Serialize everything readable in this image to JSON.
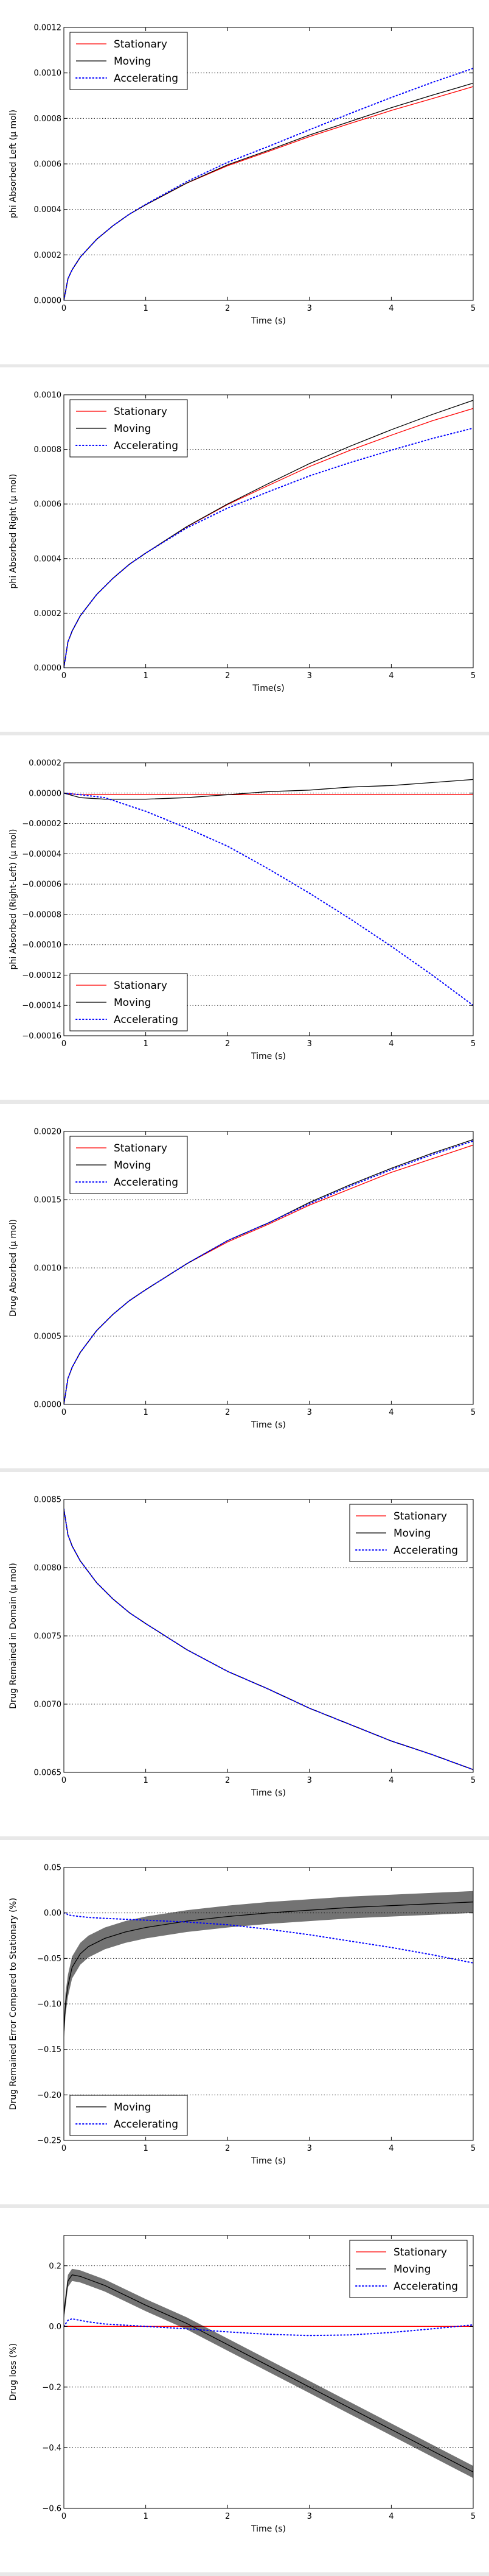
{
  "chart_data": [
    {
      "type": "line",
      "xlabel": "Time (s)",
      "ylabel": "phi Absorbed Left (μ mol)",
      "xlim": [
        0,
        5
      ],
      "ylim": [
        0,
        0.0012
      ],
      "xticks": [
        0,
        1,
        2,
        3,
        4,
        5
      ],
      "xtick_labels": [
        "0",
        "1",
        "2",
        "3",
        "4",
        "5"
      ],
      "yticks": [
        0,
        0.0002,
        0.0004,
        0.0006,
        0.0008,
        0.001,
        0.0012
      ],
      "ytick_labels": [
        "0.0000",
        "0.0002",
        "0.0004",
        "0.0006",
        "0.0008",
        "0.0010",
        "0.0012"
      ],
      "grid": "horizontal-dotted",
      "legend": "top-left",
      "x": [
        0,
        0.05,
        0.1,
        0.2,
        0.4,
        0.6,
        0.8,
        1.0,
        1.5,
        2.0,
        2.5,
        3.0,
        3.5,
        4.0,
        4.5,
        5.0
      ],
      "series": [
        {
          "name": "Stationary",
          "color": "#ff0000",
          "dash": "solid",
          "values": [
            0,
            9.5e-05,
            0.000134,
            0.00019,
            0.000268,
            0.000328,
            0.000379,
            0.00042,
            0.000515,
            0.000592,
            0.000655,
            0.00072,
            0.000778,
            0.000835,
            0.000887,
            0.00094
          ]
        },
        {
          "name": "Moving",
          "color": "#000000",
          "dash": "solid",
          "values": [
            0,
            9.5e-05,
            0.000134,
            0.00019,
            0.000268,
            0.000328,
            0.000379,
            0.00042,
            0.000516,
            0.000596,
            0.00066,
            0.000727,
            0.000787,
            0.000847,
            0.000902,
            0.000955
          ]
        },
        {
          "name": "Accelerating",
          "color": "#0000ff",
          "dash": "dotted",
          "values": [
            0,
            9.5e-05,
            0.000134,
            0.00019,
            0.000268,
            0.000328,
            0.000379,
            0.000422,
            0.000522,
            0.000607,
            0.000677,
            0.00075,
            0.000822,
            0.000892,
            0.000958,
            0.00102
          ]
        }
      ]
    },
    {
      "type": "line",
      "xlabel": "Time(s)",
      "ylabel": "phi Absorbed Right (μ mol)",
      "xlim": [
        0,
        5
      ],
      "ylim": [
        0,
        0.001
      ],
      "xticks": [
        0,
        1,
        2,
        3,
        4,
        5
      ],
      "xtick_labels": [
        "0",
        "1",
        "2",
        "3",
        "4",
        "5"
      ],
      "yticks": [
        0,
        0.0002,
        0.0004,
        0.0006,
        0.0008,
        0.001
      ],
      "ytick_labels": [
        "0.0000",
        "0.0002",
        "0.0004",
        "0.0006",
        "0.0008",
        "0.0010"
      ],
      "grid": "horizontal-dotted",
      "legend": "top-left",
      "x": [
        0,
        0.05,
        0.1,
        0.2,
        0.4,
        0.6,
        0.8,
        1.0,
        1.5,
        2.0,
        2.5,
        3.0,
        3.5,
        4.0,
        4.5,
        5.0
      ],
      "series": [
        {
          "name": "Stationary",
          "color": "#ff0000",
          "dash": "solid",
          "values": [
            0,
            9.5e-05,
            0.000134,
            0.00019,
            0.000268,
            0.000328,
            0.000379,
            0.00042,
            0.000516,
            0.000598,
            0.000668,
            0.000737,
            0.000797,
            0.000852,
            0.000905,
            0.00095
          ]
        },
        {
          "name": "Moving",
          "color": "#000000",
          "dash": "solid",
          "values": [
            0,
            9.5e-05,
            0.000134,
            0.00019,
            0.000268,
            0.000328,
            0.000379,
            0.00042,
            0.000517,
            0.0006,
            0.000675,
            0.000748,
            0.000812,
            0.000872,
            0.000928,
            0.00098
          ]
        },
        {
          "name": "Accelerating",
          "color": "#0000ff",
          "dash": "dotted",
          "values": [
            0,
            9.5e-05,
            0.000134,
            0.00019,
            0.000268,
            0.000328,
            0.000379,
            0.00042,
            0.000512,
            0.000585,
            0.000645,
            0.000703,
            0.000752,
            0.000797,
            0.00084,
            0.000878
          ]
        }
      ]
    },
    {
      "type": "line",
      "xlabel": "Time (s)",
      "ylabel": "phi Absorbed (Right-Left) (μ mol)",
      "xlim": [
        0,
        5
      ],
      "ylim": [
        -0.00016,
        2e-05
      ],
      "xticks": [
        0,
        1,
        2,
        3,
        4,
        5
      ],
      "xtick_labels": [
        "0",
        "1",
        "2",
        "3",
        "4",
        "5"
      ],
      "yticks": [
        2e-05,
        0,
        -2e-05,
        -4e-05,
        -6e-05,
        -8e-05,
        -0.0001,
        -0.00012,
        -0.00014,
        -0.00016
      ],
      "ytick_labels": [
        "0.00002",
        "0.00000",
        "−0.00002",
        "−0.00004",
        "−0.00006",
        "−0.00008",
        "−0.00010",
        "−0.00012",
        "−0.00014",
        "−0.00016"
      ],
      "grid": "horizontal-dotted",
      "legend": "bottom-left",
      "x": [
        0,
        0.2,
        0.5,
        1.0,
        1.5,
        2.0,
        2.5,
        3.0,
        3.5,
        4.0,
        4.5,
        5.0
      ],
      "series": [
        {
          "name": "Stationary",
          "color": "#ff0000",
          "dash": "solid",
          "values": [
            0,
            -1e-06,
            -1e-06,
            -1e-06,
            -1e-06,
            -1e-06,
            -1e-06,
            -1e-06,
            -1e-06,
            -1e-06,
            -1e-06,
            -1e-06
          ]
        },
        {
          "name": "Moving",
          "color": "#000000",
          "dash": "solid",
          "values": [
            0,
            -3e-06,
            -4e-06,
            -4e-06,
            -3e-06,
            -1e-06,
            1e-06,
            2e-06,
            4e-06,
            5e-06,
            7e-06,
            9e-06
          ]
        },
        {
          "name": "Accelerating",
          "color": "#0000ff",
          "dash": "dotted",
          "values": [
            0,
            -1e-06,
            -3e-06,
            -1.2e-05,
            -2.3e-05,
            -3.5e-05,
            -5e-05,
            -6.6e-05,
            -8.3e-05,
            -0.000101,
            -0.00012,
            -0.00014
          ]
        }
      ]
    },
    {
      "type": "line",
      "xlabel": "Time (s)",
      "ylabel": "Drug Absorbed (μ mol)",
      "xlim": [
        0,
        5
      ],
      "ylim": [
        0,
        0.002
      ],
      "xticks": [
        0,
        1,
        2,
        3,
        4,
        5
      ],
      "xtick_labels": [
        "0",
        "1",
        "2",
        "3",
        "4",
        "5"
      ],
      "yticks": [
        0,
        0.0005,
        0.001,
        0.0015,
        0.002
      ],
      "ytick_labels": [
        "0.0000",
        "0.0005",
        "0.0010",
        "0.0015",
        "0.0020"
      ],
      "grid": "horizontal-dotted",
      "legend": "top-left",
      "x": [
        0,
        0.05,
        0.1,
        0.2,
        0.4,
        0.6,
        0.8,
        1.0,
        1.5,
        2.0,
        2.5,
        3.0,
        3.5,
        4.0,
        4.5,
        5.0
      ],
      "series": [
        {
          "name": "Stationary",
          "color": "#ff0000",
          "dash": "solid",
          "values": [
            0,
            0.00019,
            0.00027,
            0.00038,
            0.00054,
            0.00066,
            0.00076,
            0.00084,
            0.00103,
            0.00119,
            0.00132,
            0.00146,
            0.00158,
            0.0017,
            0.0018,
            0.0019
          ]
        },
        {
          "name": "Moving",
          "color": "#000000",
          "dash": "solid",
          "values": [
            0,
            0.00019,
            0.00027,
            0.00038,
            0.00054,
            0.00066,
            0.00076,
            0.00084,
            0.00103,
            0.0012,
            0.00133,
            0.00148,
            0.00161,
            0.00173,
            0.00184,
            0.00194
          ]
        },
        {
          "name": "Accelerating",
          "color": "#0000ff",
          "dash": "dotted",
          "values": [
            0,
            0.00019,
            0.00027,
            0.00038,
            0.00054,
            0.00066,
            0.00076,
            0.00084,
            0.00103,
            0.0012,
            0.00133,
            0.00147,
            0.0016,
            0.00172,
            0.00183,
            0.00193
          ]
        }
      ]
    },
    {
      "type": "line",
      "xlabel": "Time (s)",
      "ylabel": "Drug Remained in Domain (μ mol)",
      "xlim": [
        0,
        5
      ],
      "ylim": [
        0.0065,
        0.0085
      ],
      "xticks": [
        0,
        1,
        2,
        3,
        4,
        5
      ],
      "xtick_labels": [
        "0",
        "1",
        "2",
        "3",
        "4",
        "5"
      ],
      "yticks": [
        0.0065,
        0.007,
        0.0075,
        0.008,
        0.0085
      ],
      "ytick_labels": [
        "0.0065",
        "0.0070",
        "0.0075",
        "0.0080",
        "0.0085"
      ],
      "grid": "horizontal-dotted",
      "legend": "top-right",
      "x": [
        0,
        0.05,
        0.1,
        0.2,
        0.4,
        0.6,
        0.8,
        1.0,
        1.5,
        2.0,
        2.5,
        3.0,
        3.5,
        4.0,
        4.5,
        5.0
      ],
      "series": [
        {
          "name": "Stationary",
          "color": "#ff0000",
          "dash": "solid",
          "values": [
            0.00843,
            0.00824,
            0.00816,
            0.00805,
            0.00789,
            0.00777,
            0.00767,
            0.00759,
            0.0074,
            0.00724,
            0.00711,
            0.00697,
            0.00685,
            0.00673,
            0.00663,
            0.00652
          ]
        },
        {
          "name": "Moving",
          "color": "#000000",
          "dash": "solid",
          "values": [
            0.00843,
            0.00824,
            0.00816,
            0.00805,
            0.00789,
            0.00777,
            0.00767,
            0.00759,
            0.0074,
            0.00724,
            0.00711,
            0.00697,
            0.00685,
            0.00673,
            0.00663,
            0.00652
          ]
        },
        {
          "name": "Accelerating",
          "color": "#0000ff",
          "dash": "dotted",
          "values": [
            0.00843,
            0.00824,
            0.00816,
            0.00805,
            0.00789,
            0.00777,
            0.00767,
            0.00759,
            0.0074,
            0.00724,
            0.00711,
            0.00697,
            0.00685,
            0.00673,
            0.00663,
            0.00652
          ]
        }
      ]
    },
    {
      "type": "line",
      "xlabel": "Time (s)",
      "ylabel": "Drug Remained Error Compared to Stationary (%)",
      "xlim": [
        0,
        5
      ],
      "ylim": [
        -0.25,
        0.05
      ],
      "xticks": [
        0,
        1,
        2,
        3,
        4,
        5
      ],
      "xtick_labels": [
        "0",
        "1",
        "2",
        "3",
        "4",
        "5"
      ],
      "yticks": [
        0.05,
        0,
        -0.05,
        -0.1,
        -0.15,
        -0.2,
        -0.25
      ],
      "ytick_labels": [
        "0.05",
        "0.00",
        "−0.05",
        "−0.10",
        "−0.15",
        "−0.20",
        "−0.25"
      ],
      "grid": "horizontal-dotted",
      "legend": "bottom-left",
      "x": [
        0,
        0.02,
        0.05,
        0.1,
        0.2,
        0.3,
        0.5,
        0.75,
        1.0,
        1.5,
        2.0,
        2.5,
        3.0,
        3.5,
        4.0,
        4.5,
        5.0
      ],
      "series": [
        {
          "name": "Moving",
          "color": "#000000",
          "dash": "solid",
          "band": 0.012,
          "values": [
            -0.13,
            -0.1,
            -0.08,
            -0.06,
            -0.045,
            -0.037,
            -0.028,
            -0.021,
            -0.016,
            -0.009,
            -0.004,
            0.0,
            0.003,
            0.006,
            0.008,
            0.01,
            0.012
          ]
        },
        {
          "name": "Accelerating",
          "color": "#0000ff",
          "dash": "dotted",
          "values": [
            0.0,
            0.0,
            -0.002,
            -0.003,
            -0.004,
            -0.005,
            -0.006,
            -0.007,
            -0.008,
            -0.01,
            -0.013,
            -0.018,
            -0.024,
            -0.031,
            -0.038,
            -0.046,
            -0.055
          ]
        }
      ]
    },
    {
      "type": "line",
      "xlabel": "Time (s)",
      "ylabel": "Drug loss (%)",
      "xlim": [
        0,
        5
      ],
      "ylim": [
        -0.6,
        0.3
      ],
      "xticks": [
        0,
        1,
        2,
        3,
        4,
        5
      ],
      "xtick_labels": [
        "0",
        "1",
        "2",
        "3",
        "4",
        "5"
      ],
      "yticks": [
        0.2,
        0,
        -0.2,
        -0.4,
        -0.6
      ],
      "ytick_labels": [
        "0.2",
        "0.0",
        "−0.2",
        "−0.4",
        "−0.6"
      ],
      "grid": "horizontal-dotted",
      "legend": "top-right",
      "x": [
        0,
        0.05,
        0.1,
        0.2,
        0.3,
        0.5,
        1.0,
        1.5,
        2.0,
        2.5,
        3.0,
        3.5,
        4.0,
        4.5,
        5.0
      ],
      "series": [
        {
          "name": "Stationary",
          "color": "#ff0000",
          "dash": "solid",
          "values": [
            0.0,
            0.0,
            0.0,
            0.0,
            0.0,
            0.0,
            0.0,
            0.0,
            0.0,
            0.0,
            0.0,
            0.0,
            0.0,
            0.0,
            0.0
          ]
        },
        {
          "name": "Moving",
          "color": "#000000",
          "dash": "solid",
          "band": 0.02,
          "values": [
            0.04,
            0.15,
            0.17,
            0.165,
            0.155,
            0.135,
            0.07,
            0.01,
            -0.06,
            -0.13,
            -0.2,
            -0.27,
            -0.34,
            -0.41,
            -0.48
          ]
        },
        {
          "name": "Accelerating",
          "color": "#0000ff",
          "dash": "dotted",
          "values": [
            0.0,
            0.02,
            0.025,
            0.02,
            0.015,
            0.008,
            0.0,
            -0.008,
            -0.018,
            -0.026,
            -0.03,
            -0.028,
            -0.02,
            -0.008,
            0.005
          ]
        }
      ]
    }
  ]
}
